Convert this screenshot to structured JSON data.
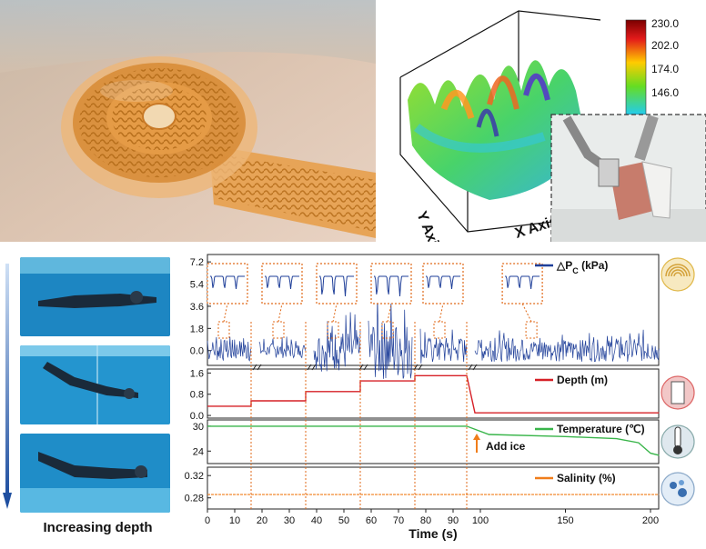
{
  "colorbar": {
    "ticks": [
      "230.0",
      "202.0",
      "174.0",
      "146.0"
    ]
  },
  "axis3d": {
    "y_label": "Y Axis",
    "x_label": "X Axis"
  },
  "caption": {
    "depth": "Increasing depth"
  },
  "chart_data": {
    "type": "line",
    "x_axis": {
      "label": "Time (s)",
      "ticks": [
        "0",
        "10",
        "20",
        "30",
        "40",
        "50",
        "60",
        "70",
        "80",
        "90",
        "100",
        "150",
        "200"
      ],
      "breaks_after": [
        16,
        36,
        55,
        75,
        95
      ]
    },
    "stage_markers": [
      16,
      36,
      56,
      76,
      95
    ],
    "panels": [
      {
        "name": "pressure",
        "legend": "△P",
        "legend_sub": "C",
        "legend_unit": " (kPa)",
        "color": "#1f3f99",
        "y_ticks": [
          "7.2",
          "5.4",
          "3.6",
          "1.8",
          "0.0"
        ],
        "ylim": [
          -1.2,
          7.8
        ],
        "segments": [
          {
            "x_start": 0,
            "x_end": 16,
            "amplitude": 0.9
          },
          {
            "x_start": 19,
            "x_end": 36,
            "amplitude": 0.6
          },
          {
            "x_start": 39,
            "x_end": 56,
            "amplitude": 1.7
          },
          {
            "x_start": 59,
            "x_end": 75,
            "amplitude": 2.4
          },
          {
            "x_start": 78,
            "x_end": 95,
            "amplitude": 1.1
          },
          {
            "x_start": 98,
            "x_end": 205,
            "amplitude": 0.9
          }
        ]
      },
      {
        "name": "depth",
        "legend": "Depth (m)",
        "color": "#d62027",
        "y_ticks": [
          "1.6",
          "0.8",
          "0.0"
        ],
        "ylim": [
          -0.1,
          1.75
        ],
        "steps": [
          {
            "x_start": 0,
            "x_end": 16,
            "value": 0.35
          },
          {
            "x_start": 16,
            "x_end": 36,
            "value": 0.55
          },
          {
            "x_start": 36,
            "x_end": 56,
            "value": 0.9
          },
          {
            "x_start": 56,
            "x_end": 76,
            "value": 1.3
          },
          {
            "x_start": 76,
            "x_end": 95,
            "value": 1.5
          },
          {
            "x_start": 98,
            "x_end": 205,
            "value": 0.1
          }
        ]
      },
      {
        "name": "temperature",
        "legend": "Temperature (℃)",
        "color": "#39b54a",
        "y_ticks": [
          "30",
          "24"
        ],
        "ylim": [
          21,
          31.5
        ],
        "points": [
          [
            0,
            30
          ],
          [
            95,
            30
          ],
          [
            105,
            28
          ],
          [
            150,
            27.5
          ],
          [
            180,
            27.0
          ],
          [
            193,
            26.0
          ],
          [
            200,
            23.5
          ],
          [
            205,
            23.0
          ]
        ],
        "annotation": "Add ice"
      },
      {
        "name": "salinity",
        "legend": "Salinity (%)",
        "color": "#f07d1a",
        "y_ticks": [
          "0.32",
          "0.28"
        ],
        "ylim": [
          0.26,
          0.335
        ],
        "value": 0.286
      }
    ]
  }
}
